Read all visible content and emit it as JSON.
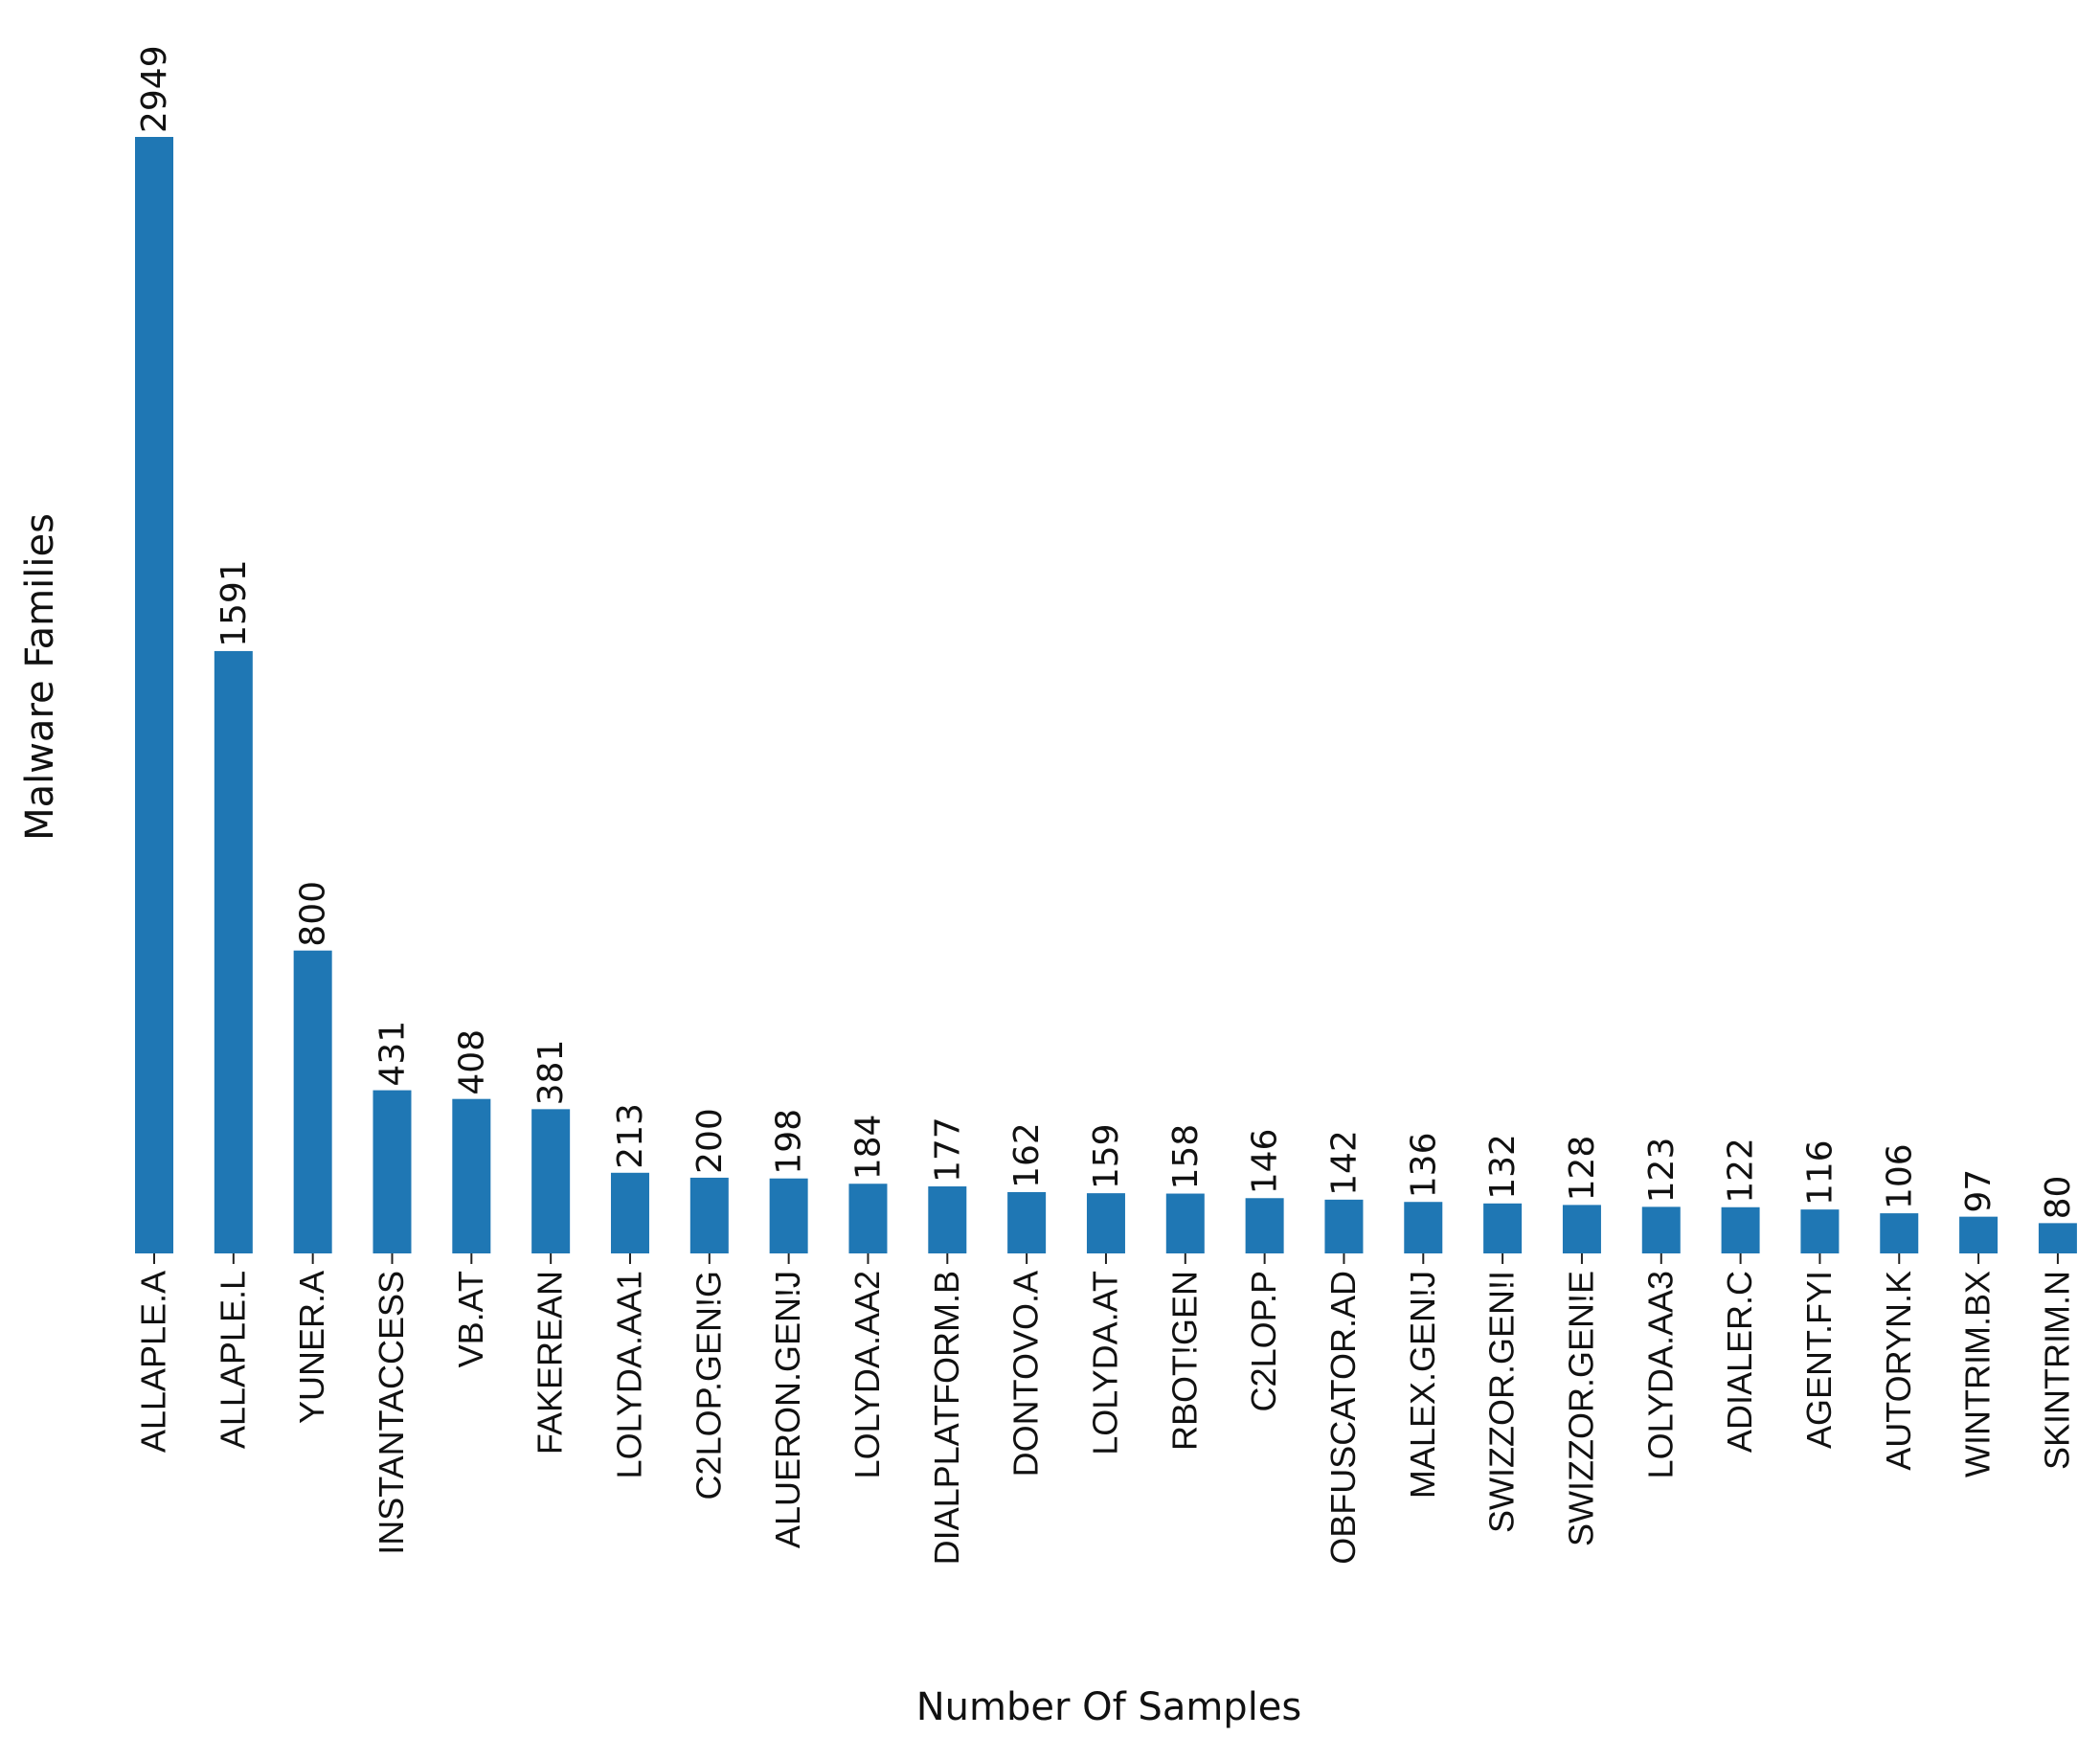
{
  "chart_data": {
    "type": "bar",
    "x_label": "Number Of Samples",
    "y_label": "Malware Families",
    "color": "#1f77b4",
    "categories": [
      "ALLAPLE.A",
      "ALLAPLE.L",
      "YUNER.A",
      "INSTANTACCESS",
      "VB.AT",
      "FAKEREAN",
      "LOLYDA.AA1",
      "C2LOP.GEN!G",
      "ALUERON.GEN!J",
      "LOLYDA.AA2",
      "DIALPLATFORM.B",
      "DONTOVO.A",
      "LOLYDA.AT",
      "RBOT!GEN",
      "C2LOP.P",
      "OBFUSCATOR.AD",
      "MALEX.GEN!J",
      "SWIZZOR.GEN!I",
      "SWIZZOR.GEN!E",
      "LOLYDA.AA3",
      "ADIALER.C",
      "AGENT.FYI",
      "AUTORYN.K",
      "WINTRIM.BX",
      "SKINTRIM.N"
    ],
    "values": [
      2949,
      1591,
      800,
      431,
      408,
      381,
      213,
      200,
      198,
      184,
      177,
      162,
      159,
      158,
      146,
      142,
      136,
      132,
      128,
      123,
      122,
      116,
      106,
      97,
      80
    ]
  }
}
